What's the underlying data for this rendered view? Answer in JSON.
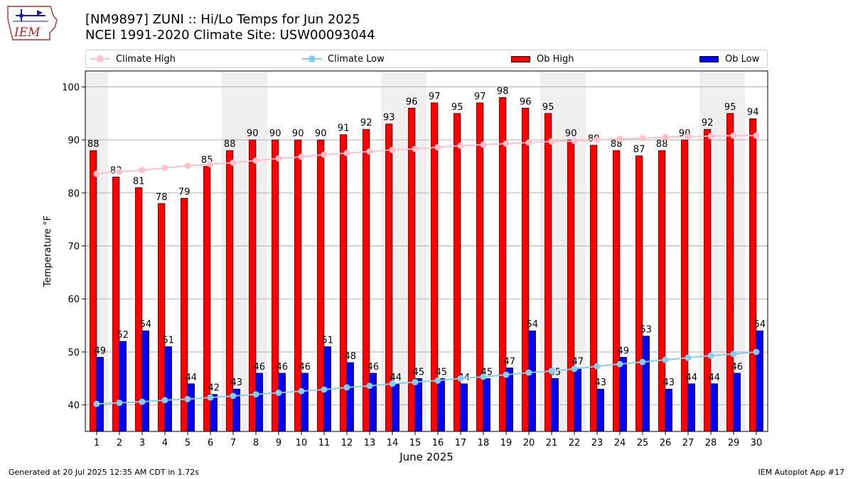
{
  "header": {
    "title_line1": "[NM9897] ZUNI :: Hi/Lo Temps for Jun 2025",
    "title_line2": "NCEI 1991-2020 Climate Site: USW00093044",
    "logo_text": "IEM"
  },
  "footer": {
    "generated": "Generated at 20 Jul 2025 12:35 AM CDT in 1.72s",
    "app": "IEM Autoplot App #17"
  },
  "colors": {
    "ob_high": "#ff0000",
    "ob_low": "#0000ff",
    "climate_high": "#ffc0cb",
    "climate_low": "#87ceeb",
    "weekend_shade": "#efefef",
    "grid": "#b0b0b0"
  },
  "chart_data": {
    "type": "bar",
    "title": "[NM9897] ZUNI :: Hi/Lo Temps for Jun 2025",
    "subtitle": "NCEI 1991-2020 Climate Site: USW00093044",
    "xlabel": "June 2025",
    "ylabel": "Temperature °F",
    "ylim": [
      35,
      103
    ],
    "yticks": [
      40,
      50,
      60,
      70,
      80,
      90,
      100
    ],
    "grid": true,
    "legend_position": "top",
    "categories": [
      "1",
      "2",
      "3",
      "4",
      "5",
      "6",
      "7",
      "8",
      "9",
      "10",
      "11",
      "12",
      "13",
      "14",
      "15",
      "16",
      "17",
      "18",
      "19",
      "20",
      "21",
      "22",
      "23",
      "24",
      "25",
      "26",
      "27",
      "28",
      "29",
      "30"
    ],
    "shaded_days": [
      1,
      7,
      8,
      14,
      15,
      21,
      22,
      28,
      29
    ],
    "series": [
      {
        "name": "Ob High",
        "kind": "bar",
        "values": [
          88,
          83,
          81,
          78,
          79,
          85,
          88,
          90,
          90,
          90,
          90,
          91,
          92,
          93,
          96,
          97,
          95,
          97,
          98,
          96,
          95,
          90,
          89,
          88,
          87,
          88,
          90,
          92,
          95,
          94
        ]
      },
      {
        "name": "Ob Low",
        "kind": "bar",
        "values": [
          49,
          52,
          54,
          51,
          44,
          42,
          43,
          46,
          46,
          46,
          51,
          48,
          46,
          44,
          45,
          45,
          44,
          45,
          47,
          54,
          45,
          47,
          43,
          49,
          53,
          43,
          44,
          44,
          46,
          54
        ]
      },
      {
        "name": "Climate High",
        "kind": "line",
        "values": [
          83.6,
          84.0,
          84.3,
          84.7,
          85.1,
          85.4,
          85.7,
          86.1,
          86.5,
          86.8,
          87.2,
          87.5,
          87.8,
          88.1,
          88.3,
          88.6,
          88.9,
          89.1,
          89.3,
          89.5,
          89.7,
          89.8,
          90.0,
          90.2,
          90.3,
          90.5,
          90.6,
          90.7,
          90.8,
          90.8
        ]
      },
      {
        "name": "Climate Low",
        "kind": "line",
        "values": [
          40.2,
          40.4,
          40.6,
          40.9,
          41.1,
          41.4,
          41.7,
          42.0,
          42.3,
          42.6,
          42.9,
          43.3,
          43.6,
          44.0,
          44.3,
          44.6,
          45.0,
          45.3,
          45.7,
          46.1,
          46.4,
          46.8,
          47.3,
          47.7,
          48.1,
          48.5,
          48.9,
          49.3,
          49.6,
          50.0
        ]
      }
    ]
  }
}
